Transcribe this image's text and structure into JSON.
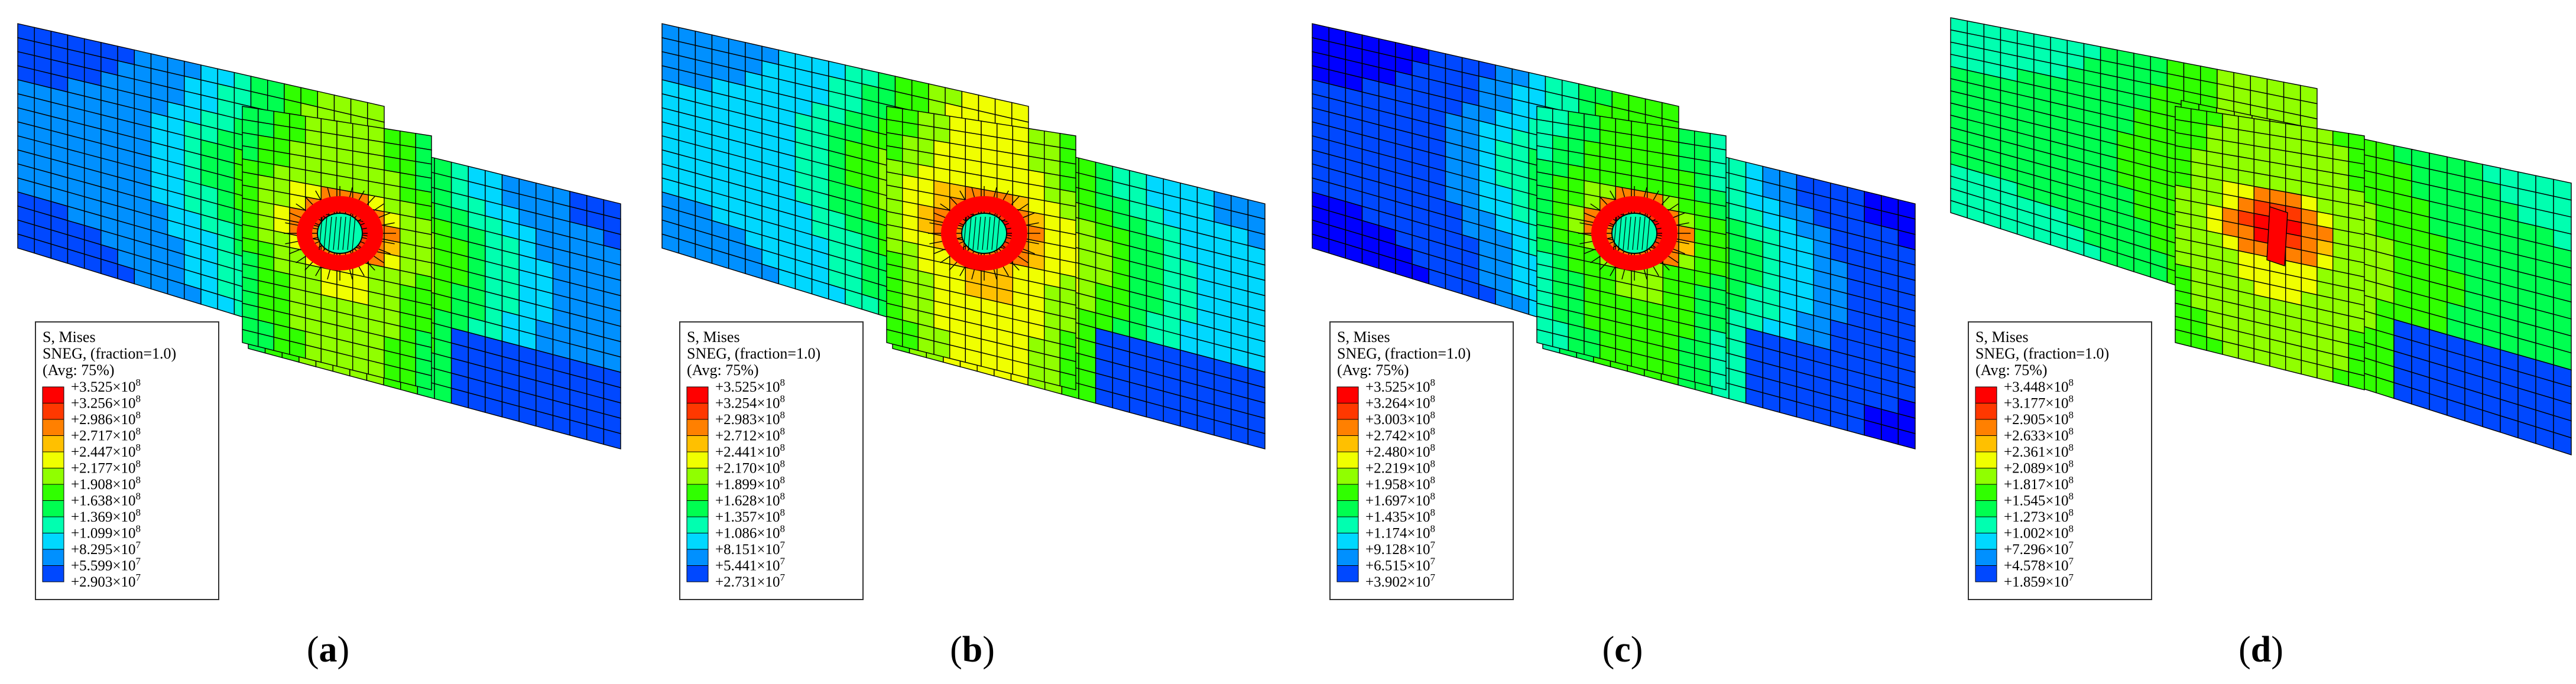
{
  "colormap": [
    "#0000ff",
    "#0048ff",
    "#0090ff",
    "#00d8ff",
    "#00ffb0",
    "#00ff50",
    "#30ff00",
    "#90ff00",
    "#f0ff00",
    "#ffc000",
    "#ff8000",
    "#ff3800",
    "#ff0000"
  ],
  "mesh_color": "#000000",
  "panels": [
    {
      "caption_open": "(",
      "caption_letter": "a",
      "caption_close": ")",
      "legend": {
        "title": "S, Mises",
        "subtitle": "SNEG, (fraction=1.0)",
        "avg": "(Avg: 75%)",
        "entries": [
          {
            "mantissa": "+3.525",
            "exp": "8"
          },
          {
            "mantissa": "+3.256",
            "exp": "8"
          },
          {
            "mantissa": "+2.986",
            "exp": "8"
          },
          {
            "mantissa": "+2.717",
            "exp": "8"
          },
          {
            "mantissa": "+2.447",
            "exp": "8"
          },
          {
            "mantissa": "+2.177",
            "exp": "8"
          },
          {
            "mantissa": "+1.908",
            "exp": "8"
          },
          {
            "mantissa": "+1.638",
            "exp": "8"
          },
          {
            "mantissa": "+1.369",
            "exp": "8"
          },
          {
            "mantissa": "+1.099",
            "exp": "8"
          },
          {
            "mantissa": "+8.295",
            "exp": "7"
          },
          {
            "mantissa": "+5.599",
            "exp": "7"
          },
          {
            "mantissa": "+2.903",
            "exp": "7"
          }
        ]
      },
      "field": {
        "peak_level": 12,
        "band_level": 8,
        "edge_level": 2,
        "hole": true,
        "shadow": 0.35
      }
    },
    {
      "caption_open": "(",
      "caption_letter": "b",
      "caption_close": ")",
      "legend": {
        "title": "S, Mises",
        "subtitle": "SNEG, (fraction=1.0)",
        "avg": "(Avg: 75%)",
        "entries": [
          {
            "mantissa": "+3.525",
            "exp": "8"
          },
          {
            "mantissa": "+3.254",
            "exp": "8"
          },
          {
            "mantissa": "+2.983",
            "exp": "8"
          },
          {
            "mantissa": "+2.712",
            "exp": "8"
          },
          {
            "mantissa": "+2.441",
            "exp": "8"
          },
          {
            "mantissa": "+2.170",
            "exp": "8"
          },
          {
            "mantissa": "+1.899",
            "exp": "8"
          },
          {
            "mantissa": "+1.628",
            "exp": "8"
          },
          {
            "mantissa": "+1.357",
            "exp": "8"
          },
          {
            "mantissa": "+1.086",
            "exp": "8"
          },
          {
            "mantissa": "+8.151",
            "exp": "7"
          },
          {
            "mantissa": "+5.441",
            "exp": "7"
          },
          {
            "mantissa": "+2.731",
            "exp": "7"
          }
        ]
      },
      "field": {
        "peak_level": 12,
        "band_level": 9,
        "edge_level": 3,
        "hole": true,
        "shadow": 0.3
      }
    },
    {
      "caption_open": "(",
      "caption_letter": "c",
      "caption_close": ")",
      "legend": {
        "title": "S, Mises",
        "subtitle": "SNEG, (fraction=1.0)",
        "avg": "(Avg: 75%)",
        "entries": [
          {
            "mantissa": "+3.525",
            "exp": "8"
          },
          {
            "mantissa": "+3.264",
            "exp": "8"
          },
          {
            "mantissa": "+3.003",
            "exp": "8"
          },
          {
            "mantissa": "+2.742",
            "exp": "8"
          },
          {
            "mantissa": "+2.480",
            "exp": "8"
          },
          {
            "mantissa": "+2.219",
            "exp": "8"
          },
          {
            "mantissa": "+1.958",
            "exp": "8"
          },
          {
            "mantissa": "+1.697",
            "exp": "8"
          },
          {
            "mantissa": "+1.435",
            "exp": "8"
          },
          {
            "mantissa": "+1.174",
            "exp": "8"
          },
          {
            "mantissa": "+9.128",
            "exp": "7"
          },
          {
            "mantissa": "+6.515",
            "exp": "7"
          },
          {
            "mantissa": "+3.902",
            "exp": "7"
          }
        ]
      },
      "field": {
        "peak_level": 12,
        "band_level": 7,
        "edge_level": 1,
        "hole": true,
        "shadow": 0.25
      }
    },
    {
      "caption_open": "(",
      "caption_letter": "d",
      "caption_close": ")",
      "legend": {
        "title": "S, Mises",
        "subtitle": "SNEG, (fraction=1.0)",
        "avg": "(Avg: 75%)",
        "entries": [
          {
            "mantissa": "+3.448",
            "exp": "8"
          },
          {
            "mantissa": "+3.177",
            "exp": "8"
          },
          {
            "mantissa": "+2.905",
            "exp": "8"
          },
          {
            "mantissa": "+2.633",
            "exp": "8"
          },
          {
            "mantissa": "+2.361",
            "exp": "8"
          },
          {
            "mantissa": "+2.089",
            "exp": "8"
          },
          {
            "mantissa": "+1.817",
            "exp": "8"
          },
          {
            "mantissa": "+1.545",
            "exp": "8"
          },
          {
            "mantissa": "+1.273",
            "exp": "8"
          },
          {
            "mantissa": "+1.002",
            "exp": "8"
          },
          {
            "mantissa": "+7.296",
            "exp": "7"
          },
          {
            "mantissa": "+4.578",
            "exp": "7"
          },
          {
            "mantissa": "+1.859",
            "exp": "7"
          }
        ]
      },
      "field": {
        "peak_level": 12,
        "band_level": 8,
        "edge_level": 5,
        "hole": false,
        "shadow": 0
      }
    }
  ]
}
